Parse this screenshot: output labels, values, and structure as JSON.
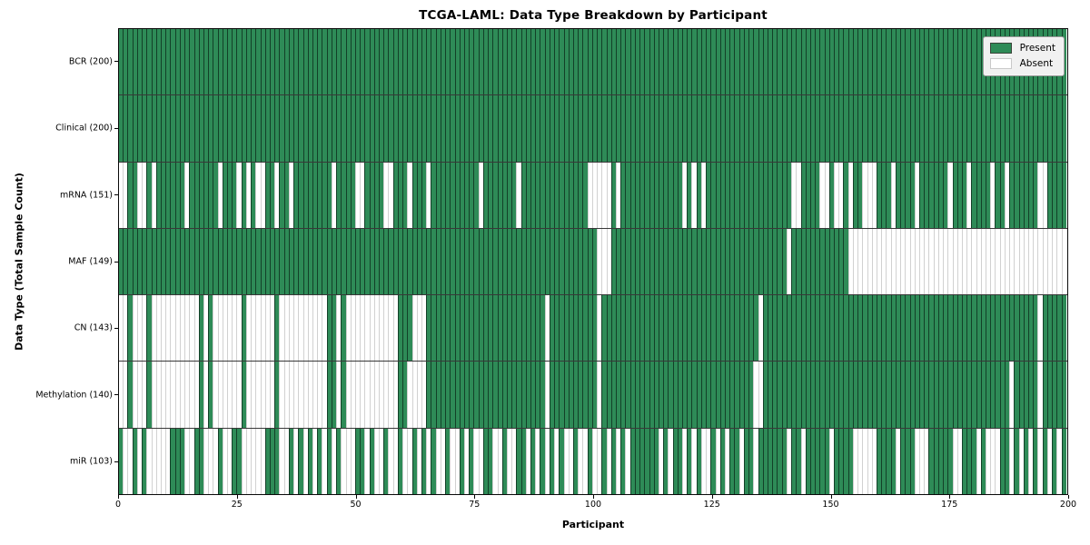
{
  "title": "TCGA-LAML: Data Type Breakdown by Participant",
  "axes": {
    "x_label": "Participant",
    "y_label": "Data Type (Total Sample Count)",
    "x_tick_values": [
      0,
      25,
      50,
      75,
      100,
      125,
      150,
      175,
      200
    ],
    "x_range": [
      0,
      200
    ]
  },
  "legend": {
    "items": [
      {
        "label": "Present",
        "color": "#2e8b57"
      },
      {
        "label": "Absent",
        "color": "#ffffff"
      }
    ],
    "position": "upper right"
  },
  "colors": {
    "present": "#2e8b57",
    "absent": "#ffffff",
    "background": "#ffffff"
  },
  "chart_data": {
    "type": "heatmap",
    "title": "TCGA-LAML: Data Type Breakdown by Participant",
    "xlabel": "Participant",
    "ylabel": "Data Type (Total Sample Count)",
    "x_range": [
      0,
      200
    ],
    "grid": "per-cell vertical separators and per-row horizontal separators",
    "legend_entries": [
      "Present",
      "Absent"
    ],
    "values_encoding": "presence string: one char per participant index 0-199; 1=Present, 0=Absent",
    "rows": [
      {
        "label": "BCR (200)",
        "present_count": 200,
        "presence": "11111111111111111111111111111111111111111111111111111111111111111111111111111111111111111111111111111111111111111111111111111111111111111111111111111111111111111111111111111111111111111111111111111111"
      },
      {
        "label": "Clinical (200)",
        "present_count": 200,
        "presence": "11111111111111111111111111111111111111111111111111111111111111111111111111111111111111111111111111111111111111111111111111111111111111111111111111111111111111111111111111111111111111111111111111111111"
      },
      {
        "label": "mRNA (151)",
        "present_count": 151,
        "presence": "00110010111111011111101110101001101101111111101111001111001110111011111111110111111101111111111111100000101111111111111010101111111111111111110011110010010110001110111101111110111011110110111111001111"
      },
      {
        "label": "MAF (149)",
        "present_count": 149,
        "presence": "11111111111111111111111111111111111111111111111111111111111111111111111111111111111111111111111111111000111111111111111111111111111111111111101111111111110000000000000000000000000000000000000000000000"
      },
      {
        "label": "CN (143)",
        "present_count": 143,
        "presence": "00100010000000000101000000100000010000000000110100000000000111000111111111111111111111111101111111111011111111111111111111111111111111101111111111111111111111111111111111111111111111111111111111011111"
      },
      {
        "label": "Methylation (140)",
        "present_count": 140,
        "presence": "00100010000000000101000000100000010000000000110100000000000110000111111111111111111111111101111111111011111111111111111111111111111111001111111111111111111111111111111111111111111111111111011111011111"
      },
      {
        "label": "miR (103)",
        "present_count": 103,
        "presence": "10010100000111001100010011000001110010101010101000110100100100101010010010100110010011010101010010010010101011111101011010100101011011011111101101111101111000001111011100011111001110100011010101010101"
      }
    ]
  }
}
